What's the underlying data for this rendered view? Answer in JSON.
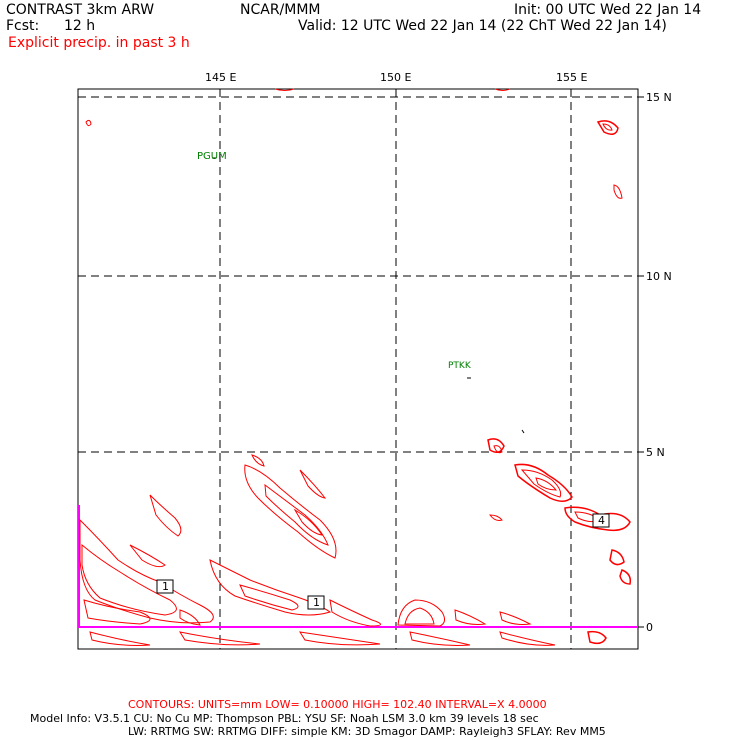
{
  "header": {
    "model_title": "CONTRAST  3km ARW",
    "center": "NCAR/MMM",
    "init": "Init: 00 UTC Wed 22 Jan 14",
    "fcst_label": "Fcst:",
    "fcst_value": "12 h",
    "valid": "Valid: 12 UTC Wed 22 Jan 14 (22 ChT Wed 22 Jan 14)",
    "field_title": "Explicit precip. in past 3 h"
  },
  "map": {
    "lon_labels": [
      "145 E",
      "150 E",
      "155 E"
    ],
    "lat_labels": [
      "15 N",
      "10 N",
      "5 N",
      "0"
    ],
    "stations": [
      {
        "id": "PGUM"
      },
      {
        "id": "PTKK"
      }
    ],
    "contour_value_labels": [
      "1",
      "1",
      "4"
    ],
    "colors": {
      "contour": "#ff0000",
      "grid": "#000000",
      "station": "#008000",
      "boundary": "#ff00ff"
    }
  },
  "footer": {
    "contours_line": "CONTOURS:  UNITS=mm  LOW= 0.10000      HIGH=  102.40      INTERVAL=X  4.0000",
    "model_info_1": "Model Info: V3.5.1    CU: No Cu    MP: Thompson    PBL: YSU      SF: Noah LSM    3.0 km   39 levels    18 sec",
    "model_info_2": "LW: RRTMG    SW: RRTMG  DIFF: simple KM: 3D Smagor DAMP: Rayleigh3  SFLAY: Rev MM5"
  }
}
